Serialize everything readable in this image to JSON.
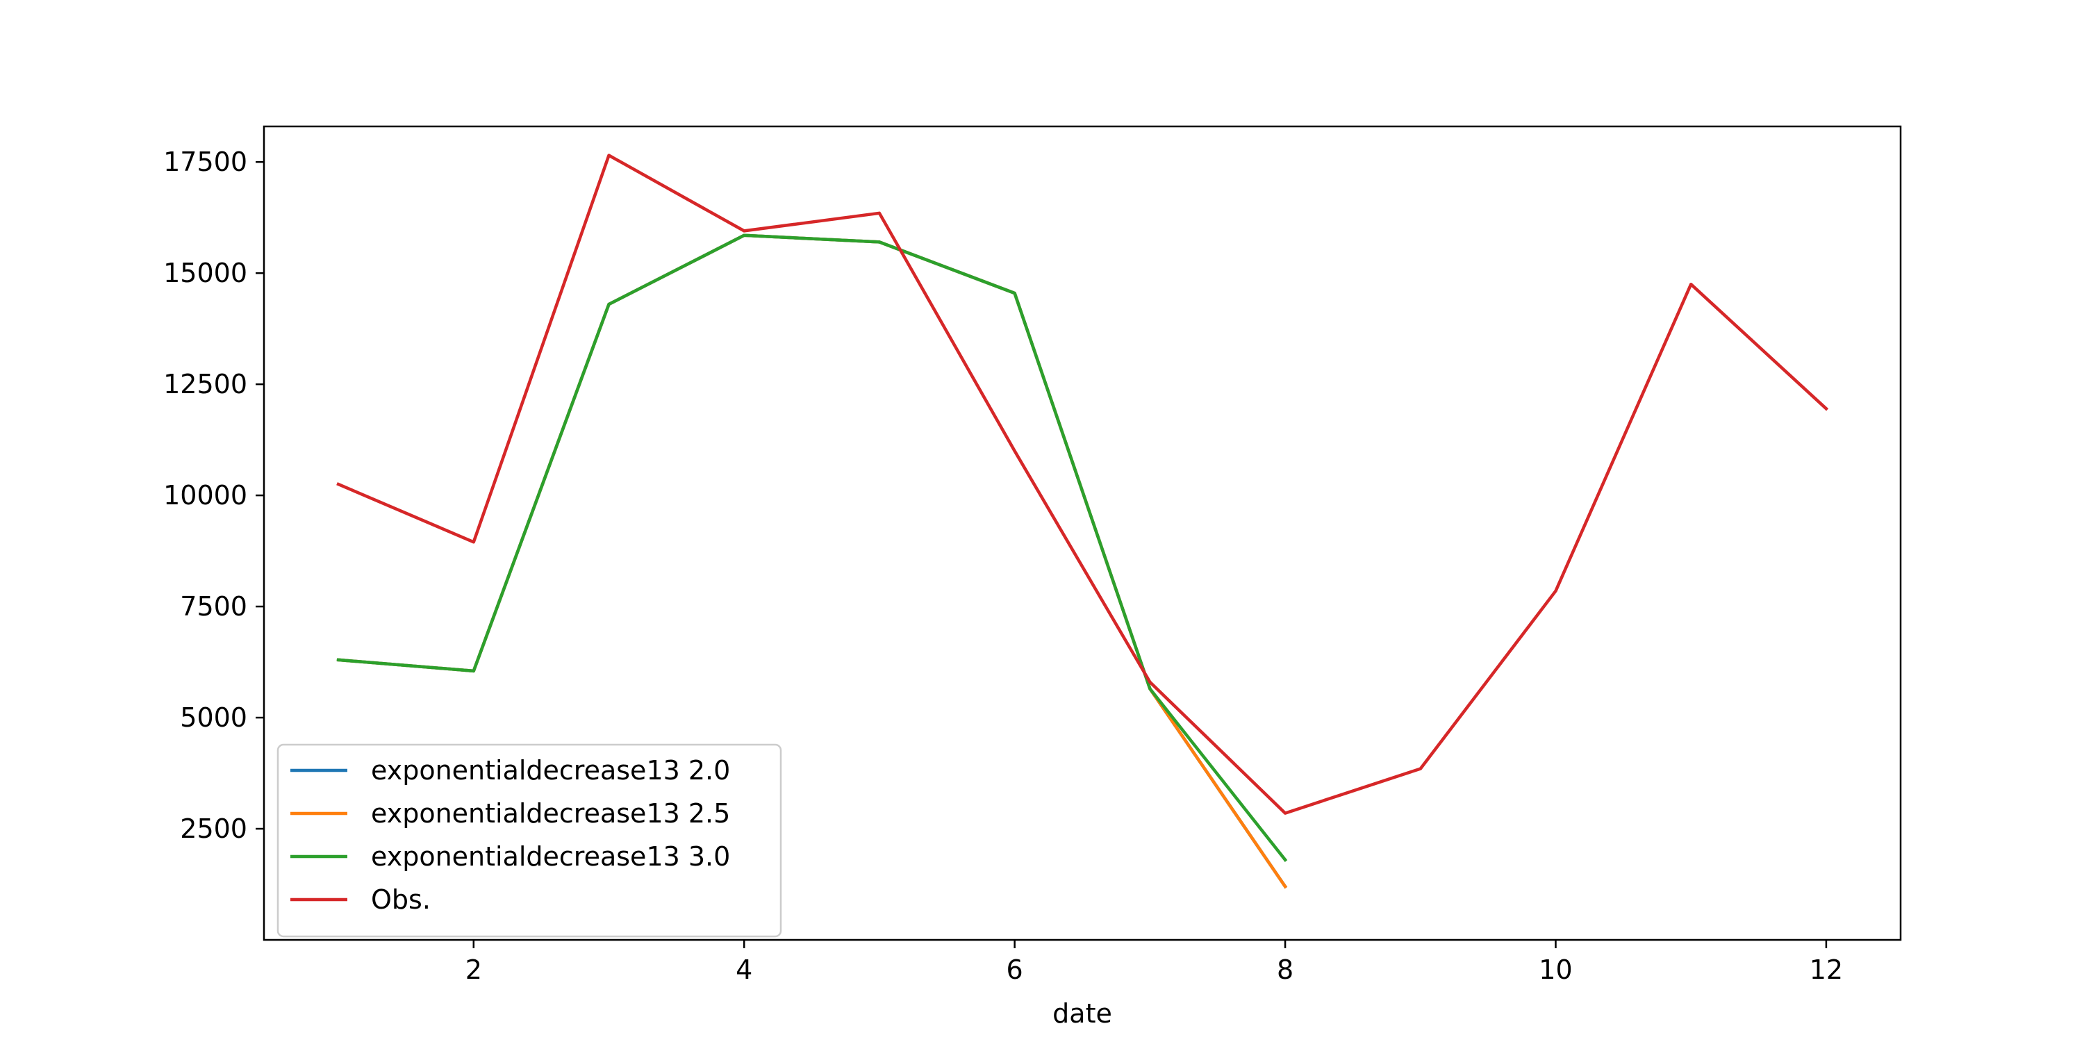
{
  "chart_data": {
    "type": "line",
    "title": "",
    "xlabel": "date",
    "ylabel": "",
    "xlim": [
      0.45,
      12.55
    ],
    "ylim": [
      0,
      18300
    ],
    "xticks": [
      2,
      4,
      6,
      8,
      10,
      12
    ],
    "yticks": [
      2500,
      5000,
      7500,
      10000,
      12500,
      15000,
      17500
    ],
    "grid": false,
    "legend_position": "lower-left",
    "series": [
      {
        "name": "exponentialdecrease13 2.0",
        "color": "#1f77b4",
        "x": [
          1,
          2,
          3,
          4,
          5,
          6,
          7,
          8
        ],
        "y": [
          6300,
          6050,
          14300,
          15850,
          15700,
          14550,
          5650,
          1200
        ]
      },
      {
        "name": "exponentialdecrease13 2.5",
        "color": "#ff7f0e",
        "x": [
          1,
          2,
          3,
          4,
          5,
          6,
          7,
          8
        ],
        "y": [
          6300,
          6050,
          14300,
          15850,
          15700,
          14550,
          5650,
          1200
        ]
      },
      {
        "name": "exponentialdecrease13 3.0",
        "color": "#2ca02c",
        "x": [
          1,
          2,
          3,
          4,
          5,
          6,
          7,
          8
        ],
        "y": [
          6300,
          6050,
          14300,
          15850,
          15700,
          14550,
          5650,
          1800
        ]
      },
      {
        "name": "Obs.",
        "color": "#d62728",
        "x": [
          1,
          2,
          3,
          4,
          5,
          6,
          7,
          8,
          9,
          10,
          11,
          12
        ],
        "y": [
          10250,
          8950,
          17650,
          15950,
          16350,
          11000,
          5800,
          2850,
          3850,
          7850,
          14750,
          11950
        ]
      }
    ]
  }
}
